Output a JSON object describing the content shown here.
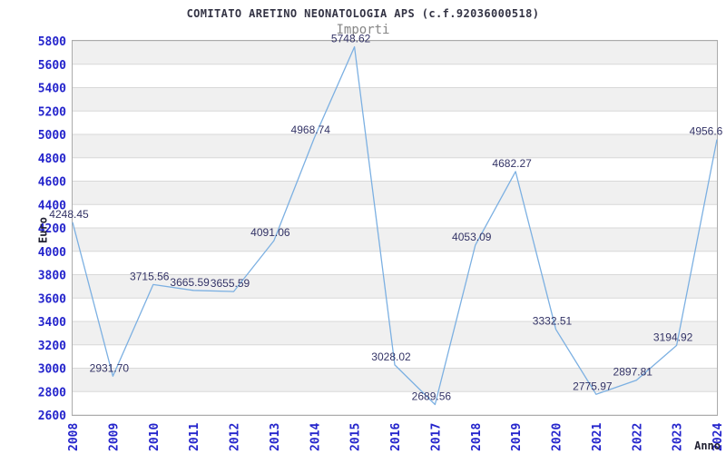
{
  "chart_data": {
    "type": "line",
    "title": "COMITATO ARETINO NEONATOLOGIA APS (c.f.92036000518)",
    "subtitle": "Importi",
    "xlabel": "Anno",
    "ylabel": "Euro",
    "categories": [
      "2008",
      "2009",
      "2010",
      "2011",
      "2012",
      "2013",
      "2014",
      "2015",
      "2016",
      "2017",
      "2018",
      "2019",
      "2020",
      "2021",
      "2022",
      "2023",
      "2024"
    ],
    "values": [
      4248.45,
      2931.7,
      3715.56,
      3665.59,
      3655.59,
      4091.06,
      4968.74,
      5748.62,
      3028.02,
      2689.56,
      4053.09,
      4682.27,
      3332.51,
      2775.97,
      2897.81,
      3194.92,
      4956.6
    ],
    "value_labels": [
      "4248.45",
      "2931.70",
      "3715.56",
      "3665.59",
      "3655.59",
      "4091.06",
      "4968.74",
      "5748.62",
      "3028.02",
      "2689.56",
      "4053.09",
      "4682.27",
      "3332.51",
      "2775.97",
      "2897.81",
      "3194.92",
      "4956.6"
    ],
    "ylim": [
      2600,
      5800
    ],
    "ytick_step": 200,
    "grid": "horizontal-only",
    "legend": "none",
    "colors": {
      "line": "#7cb0e2",
      "tick_label": "#2424cc",
      "value_label": "#333366",
      "band": "#f0f0f0",
      "gridline": "#d8d8d8",
      "plot_border": "#ababab",
      "title": "#333344",
      "subtitle": "#868686",
      "axis_title": "#222233",
      "background": "#ffffff"
    }
  }
}
